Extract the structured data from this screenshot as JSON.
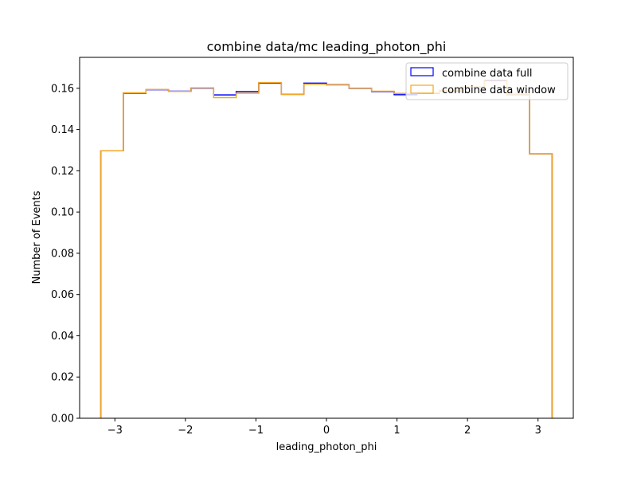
{
  "chart_data": {
    "type": "histogram-step",
    "title": "combine data/mc leading_photon_phi",
    "xlabel": "leading_photon_phi",
    "ylabel": "Number of Events",
    "xlim": [
      -3.5,
      3.5
    ],
    "ylim": [
      0.0,
      0.175
    ],
    "xticks": [
      -3,
      -2,
      -1,
      0,
      1,
      2,
      3
    ],
    "xtick_labels": [
      "−3",
      "−2",
      "−1",
      "0",
      "1",
      "2",
      "3"
    ],
    "yticks": [
      0.0,
      0.02,
      0.04,
      0.06,
      0.08,
      0.1,
      0.12,
      0.14,
      0.16
    ],
    "ytick_labels": [
      "0.00",
      "0.02",
      "0.04",
      "0.06",
      "0.08",
      "0.10",
      "0.12",
      "0.14",
      "0.16"
    ],
    "legend_position": "top-right",
    "bin_edges": [
      -3.2,
      -2.88,
      -2.56,
      -2.24,
      -1.92,
      -1.6,
      -1.28,
      -0.96,
      -0.64,
      -0.32,
      0.0,
      0.32,
      0.64,
      0.96,
      1.28,
      1.6,
      1.92,
      2.24,
      2.56,
      2.88,
      3.2
    ],
    "series": [
      {
        "name": "combine data full",
        "color": "#0000ff",
        "values": [
          0.1297,
          0.1576,
          0.1593,
          0.1586,
          0.1601,
          0.1568,
          0.1584,
          0.1625,
          0.1571,
          0.1625,
          0.1617,
          0.16,
          0.1584,
          0.1569,
          0.1575,
          0.1588,
          0.1605,
          0.1637,
          0.157,
          0.1282
        ]
      },
      {
        "name": "combine data window",
        "color": "#f5a623",
        "values": [
          0.1297,
          0.1578,
          0.1594,
          0.1585,
          0.1602,
          0.1555,
          0.1576,
          0.1628,
          0.1571,
          0.162,
          0.1616,
          0.1601,
          0.1586,
          0.1575,
          0.1577,
          0.159,
          0.1606,
          0.164,
          0.1572,
          0.1282
        ]
      }
    ]
  }
}
